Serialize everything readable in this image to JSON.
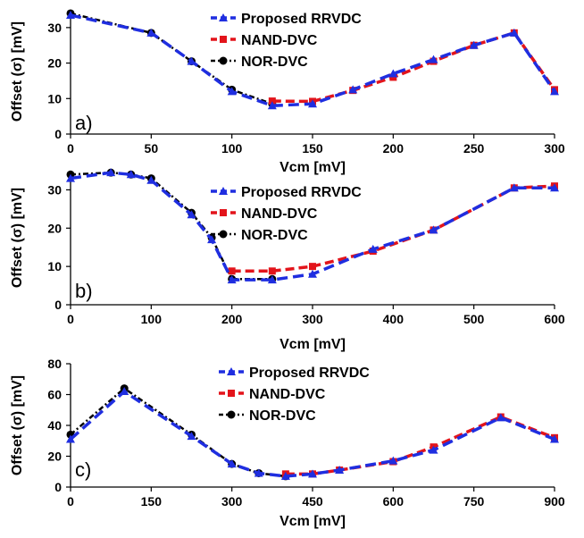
{
  "colors": {
    "proposed": "#1f2ee0",
    "nand": "#e3141b",
    "nor": "#000000",
    "axis": "#000000",
    "background": "#ffffff"
  },
  "chart_data": [
    {
      "type": "line",
      "panel_label": "a)",
      "xlabel": "Vcm [mV]",
      "ylabel": "Offset (σ) [mV]",
      "xlim": [
        0,
        300
      ],
      "ylim": [
        0,
        35
      ],
      "xticks": [
        0,
        50,
        100,
        150,
        200,
        250,
        300
      ],
      "yticks": [
        0,
        10,
        20,
        30
      ],
      "grid": false,
      "legend": "top-center",
      "series": [
        {
          "name": "Proposed RRVDC",
          "x": [
            0,
            50,
            75,
            100,
            125,
            150,
            175,
            200,
            225,
            250,
            275,
            300
          ],
          "y": [
            33.5,
            28.5,
            20.5,
            12,
            8,
            8.5,
            12.5,
            17,
            21,
            25,
            28.5,
            12
          ]
        },
        {
          "name": "NAND-DVC",
          "x": [
            125,
            150,
            175,
            200,
            225,
            250,
            275,
            300
          ],
          "y": [
            9.3,
            9.2,
            12.3,
            16,
            20.5,
            25,
            28.5,
            12.5
          ]
        },
        {
          "name": "NOR-DVC",
          "x": [
            0,
            50,
            75,
            100,
            125
          ],
          "y": [
            34,
            28.5,
            20.5,
            12.5,
            8.5
          ]
        }
      ]
    },
    {
      "type": "line",
      "panel_label": "b)",
      "xlabel": "Vcm [mV]",
      "ylabel": "Offset (σ) [mV]",
      "xlim": [
        0,
        600
      ],
      "ylim": [
        0,
        35
      ],
      "xticks": [
        0,
        100,
        200,
        300,
        400,
        500,
        600
      ],
      "yticks": [
        0,
        10,
        20,
        30
      ],
      "grid": false,
      "legend": "top-center",
      "series": [
        {
          "name": "Proposed RRVDC",
          "x": [
            0,
            50,
            75,
            100,
            150,
            175,
            200,
            250,
            300,
            375,
            450,
            550,
            600
          ],
          "y": [
            33,
            34.5,
            34,
            32.5,
            23.5,
            17,
            6.5,
            6.5,
            8,
            14.5,
            19.5,
            30.5,
            30.5
          ]
        },
        {
          "name": "NAND-DVC",
          "x": [
            200,
            250,
            300,
            375,
            450,
            550,
            600
          ],
          "y": [
            8.8,
            8.8,
            10,
            14,
            19.5,
            30.5,
            31
          ]
        },
        {
          "name": "NOR-DVC",
          "x": [
            0,
            50,
            75,
            100,
            150,
            175,
            200,
            250
          ],
          "y": [
            34,
            34.5,
            34,
            33,
            24,
            17.5,
            6.7,
            6.7
          ]
        }
      ]
    },
    {
      "type": "line",
      "panel_label": "c)",
      "xlabel": "Vcm [mV]",
      "ylabel": "Offset (σ) [mV]",
      "xlim": [
        0,
        900
      ],
      "ylim": [
        0,
        80
      ],
      "xticks": [
        0,
        150,
        300,
        450,
        600,
        750,
        900
      ],
      "yticks": [
        0,
        20,
        40,
        60,
        80
      ],
      "grid": false,
      "legend": "top-center",
      "series": [
        {
          "name": "Proposed RRVDC",
          "x": [
            0,
            100,
            225,
            300,
            350,
            400,
            450,
            500,
            600,
            675,
            800,
            900
          ],
          "y": [
            31,
            62,
            33,
            15,
            9,
            7,
            8.5,
            11,
            17,
            24,
            45,
            31
          ]
        },
        {
          "name": "NAND-DVC",
          "x": [
            400,
            450,
            500,
            600,
            675,
            800,
            900
          ],
          "y": [
            8.5,
            8.5,
            11,
            16.5,
            26,
            45.5,
            32
          ]
        },
        {
          "name": "NOR-DVC",
          "x": [
            0,
            100,
            225,
            300,
            350,
            400
          ],
          "y": [
            34,
            64,
            34,
            15,
            9,
            7
          ]
        }
      ]
    }
  ]
}
